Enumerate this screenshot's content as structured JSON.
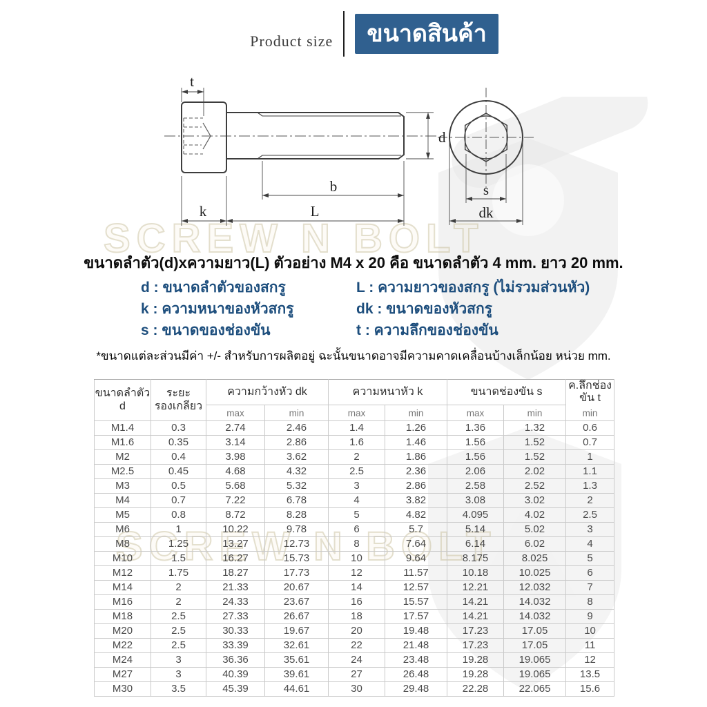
{
  "header": {
    "product_size_label": "Product size",
    "badge_text": "ขนาดสินค้า",
    "badge_bg": "#30608f"
  },
  "watermark": {
    "text": "SCREW N BOLT"
  },
  "diagram": {
    "labels": {
      "t": "t",
      "b": "b",
      "k": "k",
      "L": "L",
      "d": "d",
      "s": "s",
      "dk": "dk"
    }
  },
  "intro": {
    "headline": "ขนาดลำตัว(d)xความยาว(L) ตัวอย่าง M4 x 20 คือ ขนาดลำตัว 4 mm. ยาว 20 mm."
  },
  "legend": {
    "items": [
      "d : ขนาดลำตัวของสกรู",
      "L : ความยาวของสกรู (ไม่รวมส่วนหัว)",
      "k : ความหนาของหัวสกรู",
      "dk : ขนาดของหัวสกรู",
      "s : ขนาดของช่องขัน",
      "t : ความลึกของช่องขัน"
    ]
  },
  "note": "*ขนาดแต่ละส่วนมีค่า +/- สำหรับการผลิตอยู่ ฉะนั้นขนาดอาจมีความคาดเคลื่อนบ้างเล็กน้อย หน่วย mm.",
  "table": {
    "headers": {
      "col_d_line1": "ขนาดลำตัว",
      "col_d_line2": "d",
      "col_pitch_line1": "ระยะ",
      "col_pitch_line2": "รองเกลียว",
      "group_dk": "ความกว้างหัว dk",
      "group_k": "ความหนาหัว k",
      "group_s": "ขนาดช่องขัน s",
      "col_t": "ค.ลึกช่องขัน t",
      "max": "max",
      "min": "min"
    },
    "rows": [
      [
        "M1.4",
        "0.3",
        "2.74",
        "2.46",
        "1.4",
        "1.26",
        "1.36",
        "1.32",
        "0.6"
      ],
      [
        "M1.6",
        "0.35",
        "3.14",
        "2.86",
        "1.6",
        "1.46",
        "1.56",
        "1.52",
        "0.7"
      ],
      [
        "M2",
        "0.4",
        "3.98",
        "3.62",
        "2",
        "1.86",
        "1.56",
        "1.52",
        "1"
      ],
      [
        "M2.5",
        "0.45",
        "4.68",
        "4.32",
        "2.5",
        "2.36",
        "2.06",
        "2.02",
        "1.1"
      ],
      [
        "M3",
        "0.5",
        "5.68",
        "5.32",
        "3",
        "2.86",
        "2.58",
        "2.52",
        "1.3"
      ],
      [
        "M4",
        "0.7",
        "7.22",
        "6.78",
        "4",
        "3.82",
        "3.08",
        "3.02",
        "2"
      ],
      [
        "M5",
        "0.8",
        "8.72",
        "8.28",
        "5",
        "4.82",
        "4.095",
        "4.02",
        "2.5"
      ],
      [
        "M6",
        "1",
        "10.22",
        "9.78",
        "6",
        "5.7",
        "5.14",
        "5.02",
        "3"
      ],
      [
        "M8",
        "1.25",
        "13.27",
        "12.73",
        "8",
        "7.64",
        "6.14",
        "6.02",
        "4"
      ],
      [
        "M10",
        "1.5",
        "16.27",
        "15.73",
        "10",
        "9.64",
        "8.175",
        "8.025",
        "5"
      ],
      [
        "M12",
        "1.75",
        "18.27",
        "17.73",
        "12",
        "11.57",
        "10.18",
        "10.025",
        "6"
      ],
      [
        "M14",
        "2",
        "21.33",
        "20.67",
        "14",
        "12.57",
        "12.21",
        "12.032",
        "7"
      ],
      [
        "M16",
        "2",
        "24.33",
        "23.67",
        "16",
        "15.57",
        "14.21",
        "14.032",
        "8"
      ],
      [
        "M18",
        "2.5",
        "27.33",
        "26.67",
        "18",
        "17.57",
        "14.21",
        "14.032",
        "9"
      ],
      [
        "M20",
        "2.5",
        "30.33",
        "19.67",
        "20",
        "19.48",
        "17.23",
        "17.05",
        "10"
      ],
      [
        "M22",
        "2.5",
        "33.39",
        "32.61",
        "22",
        "21.48",
        "17.23",
        "17.05",
        "11"
      ],
      [
        "M24",
        "3",
        "36.36",
        "35.61",
        "24",
        "23.48",
        "19.28",
        "19.065",
        "12"
      ],
      [
        "M27",
        "3",
        "40.39",
        "39.61",
        "27",
        "26.48",
        "19.28",
        "19.065",
        "13.5"
      ],
      [
        "M30",
        "3.5",
        "45.39",
        "44.61",
        "30",
        "29.48",
        "22.28",
        "22.065",
        "15.6"
      ]
    ]
  }
}
